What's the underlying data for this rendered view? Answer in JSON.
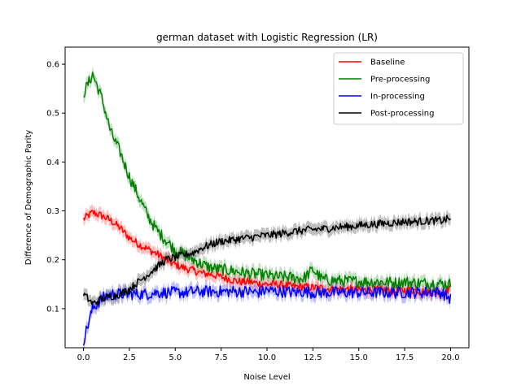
{
  "chart_data": {
    "type": "line",
    "title": "german dataset with Logistic Regression (LR)",
    "xlabel": "Noise Level",
    "ylabel": "Difference of Demographic Parity",
    "xlim": [
      -1.0,
      21.0
    ],
    "ylim": [
      0.02,
      0.635
    ],
    "xticks": [
      0.0,
      2.5,
      5.0,
      7.5,
      10.0,
      12.5,
      15.0,
      17.5,
      20.0
    ],
    "xtick_labels": [
      "0.0",
      "2.5",
      "5.0",
      "7.5",
      "10.0",
      "12.5",
      "15.0",
      "17.5",
      "20.0"
    ],
    "yticks": [
      0.1,
      0.2,
      0.3,
      0.4,
      0.5,
      0.6
    ],
    "ytick_labels": [
      "0.1",
      "0.2",
      "0.3",
      "0.4",
      "0.5",
      "0.6"
    ],
    "grid": false,
    "legend_position": "top-right",
    "shaded_band": "standard deviation band around each series",
    "series": [
      {
        "name": "Baseline",
        "color": "#ff0000",
        "x": [
          0,
          0.5,
          1,
          1.5,
          2,
          2.5,
          3,
          3.5,
          4,
          4.5,
          5,
          5.5,
          6,
          6.5,
          7,
          7.5,
          8,
          8.5,
          9,
          9.5,
          10,
          10.5,
          11,
          11.5,
          12,
          12.5,
          13,
          13.5,
          14,
          14.5,
          15,
          15.5,
          16,
          16.5,
          17,
          17.5,
          18,
          18.5,
          19,
          19.5,
          20
        ],
        "y": [
          0.283,
          0.297,
          0.29,
          0.28,
          0.265,
          0.245,
          0.232,
          0.222,
          0.212,
          0.2,
          0.19,
          0.183,
          0.178,
          0.172,
          0.17,
          0.165,
          0.16,
          0.155,
          0.155,
          0.152,
          0.15,
          0.15,
          0.148,
          0.145,
          0.145,
          0.143,
          0.142,
          0.14,
          0.14,
          0.14,
          0.138,
          0.138,
          0.138,
          0.138,
          0.135,
          0.138,
          0.138,
          0.135,
          0.135,
          0.133,
          0.14
        ]
      },
      {
        "name": "Pre-processing",
        "color": "#008000",
        "x": [
          0,
          0.5,
          1,
          1.5,
          2,
          2.5,
          3,
          3.5,
          4,
          4.5,
          5,
          5.5,
          6,
          6.5,
          7,
          7.5,
          8,
          8.5,
          9,
          9.5,
          10,
          10.5,
          11,
          11.5,
          12,
          12.5,
          13,
          13.5,
          14,
          14.5,
          15,
          15.5,
          16,
          16.5,
          17,
          17.5,
          18,
          18.5,
          19,
          19.5,
          20
        ],
        "y": [
          0.54,
          0.58,
          0.53,
          0.46,
          0.42,
          0.37,
          0.33,
          0.29,
          0.26,
          0.24,
          0.22,
          0.21,
          0.2,
          0.19,
          0.183,
          0.18,
          0.178,
          0.175,
          0.172,
          0.17,
          0.168,
          0.165,
          0.165,
          0.163,
          0.162,
          0.18,
          0.16,
          0.158,
          0.157,
          0.156,
          0.156,
          0.155,
          0.155,
          0.154,
          0.153,
          0.155,
          0.153,
          0.152,
          0.152,
          0.151,
          0.15
        ]
      },
      {
        "name": "In-processing",
        "color": "#0000ff",
        "x": [
          0,
          0.5,
          1,
          1.5,
          2,
          2.5,
          3,
          3.5,
          4,
          4.5,
          5,
          5.5,
          6,
          6.5,
          7,
          7.5,
          8,
          8.5,
          9,
          9.5,
          10,
          10.5,
          11,
          11.5,
          12,
          12.5,
          13,
          13.5,
          14,
          14.5,
          15,
          15.5,
          16,
          16.5,
          17,
          17.5,
          18,
          18.5,
          19,
          19.5,
          20
        ],
        "y": [
          0.035,
          0.1,
          0.12,
          0.13,
          0.13,
          0.13,
          0.13,
          0.13,
          0.133,
          0.133,
          0.133,
          0.133,
          0.135,
          0.135,
          0.135,
          0.135,
          0.135,
          0.135,
          0.135,
          0.133,
          0.138,
          0.135,
          0.135,
          0.133,
          0.135,
          0.133,
          0.133,
          0.133,
          0.133,
          0.133,
          0.133,
          0.133,
          0.133,
          0.133,
          0.133,
          0.133,
          0.133,
          0.133,
          0.135,
          0.133,
          0.12
        ]
      },
      {
        "name": "Post-processing",
        "color": "#000000",
        "x": [
          0,
          0.5,
          1,
          1.5,
          2,
          2.5,
          3,
          3.5,
          4,
          4.5,
          5,
          5.5,
          6,
          6.5,
          7,
          7.5,
          8,
          8.5,
          9,
          9.5,
          10,
          10.5,
          11,
          11.5,
          12,
          12.5,
          13,
          13.5,
          14,
          14.5,
          15,
          15.5,
          16,
          16.5,
          17,
          17.5,
          18,
          18.5,
          19,
          19.5,
          20
        ],
        "y": [
          0.13,
          0.11,
          0.12,
          0.125,
          0.13,
          0.14,
          0.155,
          0.17,
          0.185,
          0.2,
          0.205,
          0.21,
          0.215,
          0.225,
          0.232,
          0.238,
          0.24,
          0.243,
          0.245,
          0.248,
          0.25,
          0.252,
          0.255,
          0.258,
          0.26,
          0.262,
          0.263,
          0.265,
          0.267,
          0.268,
          0.27,
          0.272,
          0.273,
          0.275,
          0.276,
          0.278,
          0.278,
          0.279,
          0.28,
          0.28,
          0.285
        ]
      }
    ]
  }
}
